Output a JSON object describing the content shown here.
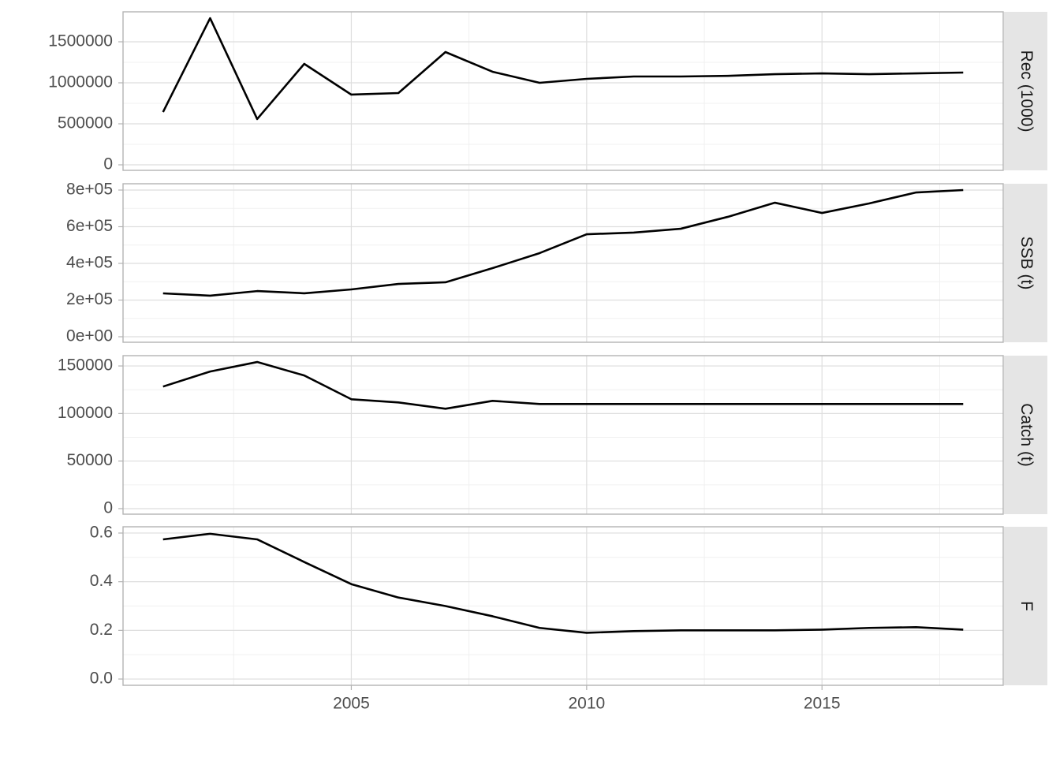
{
  "chart_data": [
    {
      "type": "line",
      "title": "Rec (1000)",
      "color": "#000000",
      "grid": true,
      "x": [
        2001,
        2002,
        2003,
        2004,
        2005,
        2006,
        2007,
        2008,
        2009,
        2010,
        2011,
        2012,
        2013,
        2014,
        2015,
        2016,
        2017,
        2018
      ],
      "values": [
        644000,
        1788000,
        558000,
        1231000,
        856000,
        875000,
        1375000,
        1135000,
        1000000,
        1048000,
        1077000,
        1077000,
        1085000,
        1105000,
        1115000,
        1105000,
        1115000,
        1125000
      ],
      "xlim": [
        2000.15,
        2018.85
      ],
      "ylim": [
        -67308,
        1865385
      ],
      "yticks": [
        0,
        500000,
        1000000,
        1500000
      ]
    },
    {
      "type": "line",
      "title": "SSB (t)",
      "color": "#000000",
      "grid": true,
      "x": [
        2001,
        2002,
        2003,
        2004,
        2005,
        2006,
        2007,
        2008,
        2009,
        2010,
        2011,
        2012,
        2013,
        2014,
        2015,
        2016,
        2017,
        2018
      ],
      "values": [
        236600,
        224000,
        249000,
        237000,
        258000,
        288000,
        297000,
        374000,
        456000,
        559000,
        568000,
        589000,
        654000,
        731000,
        675000,
        727000,
        787000,
        800000
      ],
      "xlim": [
        2000.15,
        2018.85
      ],
      "ylim": [
        -30108,
        834409
      ],
      "yticks": [
        {
          "value": 0,
          "label": "0e+00"
        },
        {
          "value": 200000,
          "label": "2e+05"
        },
        {
          "value": 400000,
          "label": "4e+05"
        },
        {
          "value": 600000,
          "label": "6e+05"
        },
        {
          "value": 800000,
          "label": "8e+05"
        }
      ]
    },
    {
      "type": "line",
      "title": "Catch (t)",
      "color": "#000000",
      "grid": true,
      "x": [
        2001,
        2002,
        2003,
        2004,
        2005,
        2006,
        2007,
        2008,
        2009,
        2010,
        2011,
        2012,
        2013,
        2014,
        2015,
        2016,
        2017,
        2018
      ],
      "values": [
        128333,
        144167,
        154167,
        140000,
        115000,
        111667,
        105000,
        113333,
        110000,
        110000,
        110000,
        110000,
        110000,
        110000,
        110000,
        110000,
        110000,
        110000
      ],
      "xlim": [
        2000.15,
        2018.85
      ],
      "ylim": [
        -5833,
        160833
      ],
      "yticks": [
        0,
        50000,
        100000,
        150000
      ]
    },
    {
      "type": "line",
      "title": "F",
      "color": "#000000",
      "grid": true,
      "x": [
        2001,
        2002,
        2003,
        2004,
        2005,
        2006,
        2007,
        2008,
        2009,
        2010,
        2011,
        2012,
        2013,
        2014,
        2015,
        2016,
        2017,
        2018
      ],
      "values": [
        0.574,
        0.597,
        0.574,
        0.481,
        0.39,
        0.335,
        0.3,
        0.258,
        0.21,
        0.19,
        0.197,
        0.2,
        0.2,
        0.2,
        0.203,
        0.21,
        0.213,
        0.203
      ],
      "xlim": [
        2000.15,
        2018.85
      ],
      "ylim": [
        -0.0258,
        0.6258
      ],
      "yticks": [
        {
          "value": 0,
          "label": "0.0"
        },
        0.2,
        0.4,
        0.6
      ],
      "xticks": [
        2005,
        2010,
        2015
      ]
    }
  ]
}
